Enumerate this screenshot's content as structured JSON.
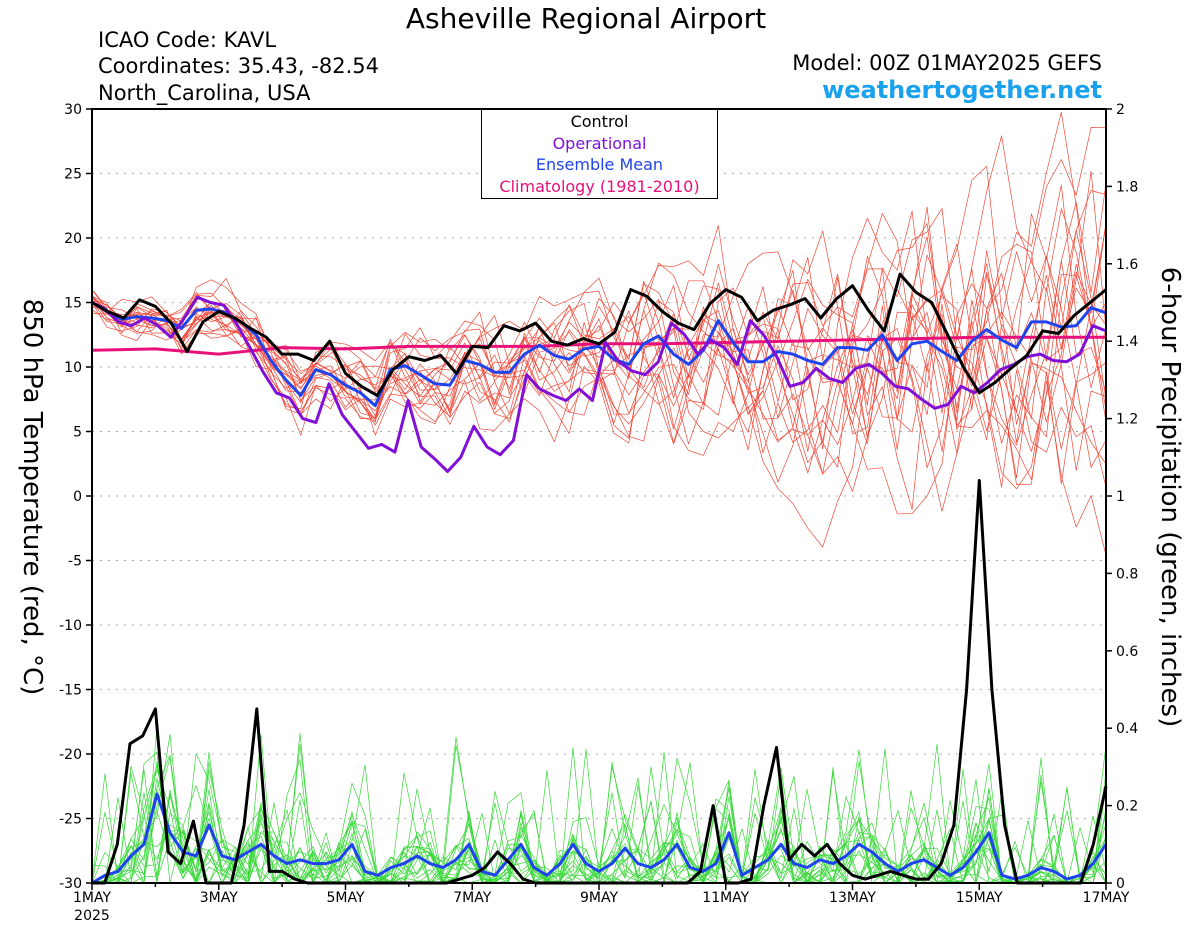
{
  "header": {
    "title": "Asheville Regional Airport",
    "icao": "ICAO Code: KAVL",
    "coordinates": "Coordinates: 35.43, -82.54",
    "location": "North_Carolina, USA",
    "model": "Model: 00Z 01MAY2025 GEFS",
    "site": "weathertogether.net"
  },
  "legend": {
    "control": "Control",
    "operational": "Operational",
    "ensemble_mean": "Ensemble Mean",
    "climatology": "Climatology (1981-2010)"
  },
  "colors": {
    "control": "#000000",
    "operational": "#8010d8",
    "ensemble_mean": "#1f44ee",
    "climatology": "#e8107a",
    "member_temp": "#f04a3a",
    "member_precip": "#3ad83a",
    "site": "#1aa1ee"
  },
  "chart_data": {
    "type": "line",
    "x_labels": [
      "1MAY",
      "3MAY",
      "5MAY",
      "7MAY",
      "9MAY",
      "11MAY",
      "13MAY",
      "15MAY",
      "17MAY"
    ],
    "x_label_year": "2025",
    "x_range_days": [
      0,
      16
    ],
    "left_axis": {
      "label": "850 hPa Temperature (red, °C)",
      "range": [
        -30,
        30
      ],
      "ticks": [
        30,
        25,
        20,
        15,
        10,
        5,
        0,
        -5,
        -10,
        -15,
        -20,
        -25,
        -30
      ]
    },
    "right_axis": {
      "label": "6-hour Precipitation (green, inches)",
      "range": [
        0,
        2
      ],
      "ticks": [
        2,
        1.8,
        1.6,
        1.4,
        1.2,
        1,
        0.8,
        0.6,
        0.4,
        0.2,
        0
      ]
    },
    "grid": "dotted horizontal",
    "temperature_series": {
      "control": [
        15,
        14.3,
        13.8,
        15.2,
        14.7,
        13.4,
        11.2,
        13.5,
        14.3,
        13.8,
        13,
        12.3,
        11,
        11,
        10.5,
        12,
        9.5,
        8.5,
        7.8,
        9.8,
        10.8,
        10.5,
        10.9,
        9.5,
        11.6,
        11.5,
        13.2,
        12.8,
        13.4,
        12,
        11.7,
        12.2,
        11.8,
        12.7,
        16,
        15.5,
        14.3,
        13.4,
        12.9,
        14.9,
        16,
        15.4,
        13.6,
        14.4,
        14.8,
        15.3,
        13.8,
        15.3,
        16.3,
        14.4,
        12.8,
        17.2,
        15.8,
        15,
        12.5,
        10,
        8,
        8.8,
        9.9,
        10.9,
        12.8,
        12.6,
        14,
        15,
        16
      ],
      "operational": [
        15,
        14.5,
        13.5,
        13.2,
        13.8,
        13.2,
        12.3,
        13.8,
        15.4,
        15,
        14.8,
        13.3,
        11.5,
        9.6,
        8,
        7.6,
        6,
        5.7,
        8.7,
        6.3,
        5,
        3.7,
        4,
        3.4,
        7.4,
        3.8,
        2.9,
        1.9,
        3,
        5.4,
        3.8,
        3.2,
        4.3,
        9.4,
        8.3,
        7.8,
        7.4,
        8.3,
        7.4,
        11.9,
        10.4,
        9.7,
        9.4,
        10.4,
        13.4,
        12.5,
        11,
        12.1,
        11.5,
        10.2,
        13.6,
        12.5,
        10.8,
        8.5,
        8.8,
        9.9,
        9.1,
        8.8,
        9.9,
        10.2,
        9.5,
        8.5,
        8.3,
        7.5,
        6.8,
        7.1,
        8.5,
        8,
        8.8,
        9.8,
        10.2,
        10.8,
        11,
        10.5,
        10.4,
        11,
        13.2,
        12.8
      ],
      "ensemble_mean": [
        15,
        14.3,
        13.7,
        13.9,
        13.8,
        13.6,
        13,
        14.4,
        14.5,
        14.2,
        13.5,
        12.5,
        10.5,
        9,
        7.8,
        9.8,
        9.4,
        8.6,
        8,
        7,
        9.8,
        10.1,
        9.4,
        8.7,
        8.6,
        10.5,
        10.2,
        9.6,
        9.6,
        11,
        11.7,
        10.9,
        10.6,
        11.4,
        11.6,
        10.6,
        10.2,
        11.8,
        12.4,
        11,
        10.2,
        11.3,
        13.6,
        11.9,
        10.4,
        10.4,
        11.2,
        11,
        10.5,
        10.2,
        11.5,
        11.5,
        11.3,
        12.5,
        10.5,
        11.8,
        12,
        11.2,
        10.5,
        12,
        12.9,
        12.1,
        11.5,
        13.5,
        13.5,
        13.1,
        13.2,
        14.6,
        14.2
      ],
      "climatology_points": [
        [
          0,
          11.3
        ],
        [
          1,
          11.4
        ],
        [
          2,
          11
        ],
        [
          3,
          11.5
        ],
        [
          4,
          11.4
        ],
        [
          5,
          11.6
        ],
        [
          6,
          11.6
        ],
        [
          7,
          11.6
        ],
        [
          8,
          11.8
        ],
        [
          9,
          11.8
        ],
        [
          10,
          11.9
        ],
        [
          11,
          12
        ],
        [
          12,
          12.1
        ],
        [
          13,
          12.2
        ],
        [
          14,
          12.3
        ],
        [
          15,
          12.3
        ],
        [
          16,
          12.3
        ]
      ]
    },
    "precip_series": {
      "control": [
        0,
        0,
        0.1,
        0.36,
        0.38,
        0.45,
        0.08,
        0.05,
        0.16,
        0,
        0,
        0,
        0.15,
        0.45,
        0.03,
        0.03,
        0.01,
        0,
        0,
        0,
        0,
        0,
        0,
        0,
        0,
        0,
        0,
        0,
        0,
        0.01,
        0.02,
        0.04,
        0.08,
        0.05,
        0.01,
        0,
        0,
        0,
        0,
        0,
        0,
        0,
        0,
        0,
        0,
        0,
        0,
        0,
        0.03,
        0.2,
        0,
        0,
        0.01,
        0.2,
        0.35,
        0.06,
        0.1,
        0.07,
        0.1,
        0.05,
        0.02,
        0.01,
        0.02,
        0.03,
        0.02,
        0.01,
        0.01,
        0.05,
        0.15,
        0.5,
        1.04,
        0.5,
        0.15,
        0,
        0,
        0,
        0,
        0,
        0,
        0.1,
        0.25
      ],
      "ensemble_mean": [
        0,
        0.02,
        0.03,
        0.07,
        0.1,
        0.23,
        0.13,
        0.08,
        0.07,
        0.15,
        0.07,
        0.06,
        0.08,
        0.1,
        0.07,
        0.05,
        0.06,
        0.05,
        0.05,
        0.06,
        0.1,
        0.03,
        0.02,
        0.04,
        0.05,
        0.07,
        0.05,
        0.04,
        0.06,
        0.1,
        0.03,
        0.02,
        0.06,
        0.1,
        0.04,
        0.02,
        0.05,
        0.1,
        0.05,
        0.03,
        0.05,
        0.09,
        0.05,
        0.04,
        0.06,
        0.1,
        0.04,
        0.03,
        0.05,
        0.13,
        0.02,
        0.04,
        0.06,
        0.1,
        0.05,
        0.04,
        0.06,
        0.05,
        0.07,
        0.1,
        0.08,
        0.05,
        0.03,
        0.05,
        0.06,
        0.04,
        0.02,
        0.04,
        0.08,
        0.13,
        0.02,
        0.01,
        0.02,
        0.04,
        0.03,
        0.01,
        0.02,
        0.05,
        0.1
      ]
    }
  }
}
